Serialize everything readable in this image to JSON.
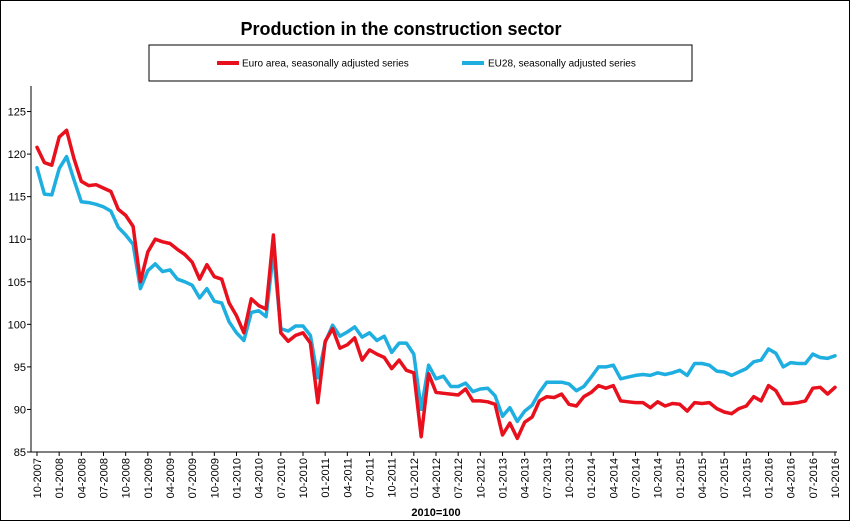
{
  "chart_data": {
    "type": "line",
    "title": "Production in the construction sector",
    "xlabel": "2010=100",
    "ylabel": "",
    "ylim": [
      85,
      128
    ],
    "yticks": [
      85,
      90,
      95,
      100,
      105,
      110,
      115,
      120,
      125
    ],
    "xtick_labels": [
      "10-2007",
      "01-2008",
      "04-2008",
      "07-2008",
      "10-2008",
      "01-2009",
      "04-2009",
      "07-2009",
      "10-2009",
      "01-2010",
      "04-2010",
      "07-2010",
      "10-2010",
      "01-2011",
      "04-2011",
      "07-2011",
      "10-2011",
      "01-2012",
      "04-2012",
      "07-2012",
      "10-2012",
      "01-2013",
      "04-2013",
      "07-2013",
      "10-2013",
      "01-2014",
      "04-2014",
      "07-2014",
      "10-2014",
      "01-2015",
      "04-2015",
      "07-2015",
      "10-2015",
      "01-2016",
      "04-2016",
      "07-2016",
      "10-2016"
    ],
    "legend_position": "top",
    "colors": {
      "euro": "#e8101c",
      "eu28": "#1eaee0"
    },
    "series": [
      {
        "name": "Euro area, seasonally adjusted series",
        "color": "#e8101c",
        "values": [
          120.8,
          119.0,
          118.7,
          122.0,
          122.8,
          119.5,
          116.8,
          116.3,
          116.4,
          116.0,
          115.6,
          113.5,
          112.8,
          111.5,
          105.0,
          108.5,
          110.0,
          109.7,
          109.5,
          108.8,
          108.2,
          107.3,
          105.3,
          107.0,
          105.6,
          105.3,
          102.5,
          101.0,
          99.0,
          103.0,
          102.2,
          101.8,
          110.5,
          99.0,
          98.0,
          98.7,
          99.0,
          97.8,
          90.8,
          98.0,
          99.5,
          97.2,
          97.6,
          98.4,
          95.8,
          97.0,
          96.5,
          96.1,
          94.8,
          95.8,
          94.6,
          94.3,
          86.8,
          94.2,
          92.0,
          91.9,
          91.8,
          91.7,
          92.4,
          91.0,
          91.0,
          90.9,
          90.6,
          87.0,
          88.4,
          86.6,
          88.5,
          89.1,
          91.0,
          91.5,
          91.4,
          91.8,
          90.6,
          90.4,
          91.5,
          92.0,
          92.8,
          92.5,
          92.8,
          91.0,
          90.9,
          90.8,
          90.8,
          90.2,
          90.9,
          90.4,
          90.7,
          90.6,
          89.8,
          90.8,
          90.7,
          90.8,
          90.1,
          89.7,
          89.5,
          90.1,
          90.4,
          91.5,
          91.0,
          92.8,
          92.2,
          90.7,
          90.7,
          90.8,
          91.0,
          92.5,
          92.6,
          91.8,
          92.6
        ]
      },
      {
        "name": "EU28, seasonally adjusted series",
        "color": "#1eaee0",
        "values": [
          118.4,
          115.3,
          115.2,
          118.3,
          119.7,
          117.0,
          114.4,
          114.3,
          114.1,
          113.8,
          113.3,
          111.4,
          110.5,
          109.4,
          104.2,
          106.3,
          107.1,
          106.2,
          106.4,
          105.3,
          105.0,
          104.6,
          103.1,
          104.2,
          102.7,
          102.5,
          100.3,
          99.0,
          98.1,
          101.4,
          101.6,
          100.9,
          108.5,
          99.5,
          99.2,
          99.8,
          99.8,
          98.7,
          93.7,
          97.9,
          99.9,
          98.6,
          99.1,
          99.7,
          98.5,
          99.0,
          98.1,
          98.6,
          96.7,
          97.8,
          97.8,
          96.5,
          90.0,
          95.2,
          93.6,
          93.9,
          92.7,
          92.7,
          93.1,
          92.1,
          92.4,
          92.5,
          91.6,
          89.2,
          90.2,
          88.6,
          89.8,
          90.5,
          92.0,
          93.2,
          93.2,
          93.2,
          93.0,
          92.2,
          92.7,
          93.8,
          95.0,
          95.0,
          95.2,
          93.6,
          93.8,
          94.0,
          94.1,
          94.0,
          94.3,
          94.1,
          94.3,
          94.6,
          94.0,
          95.4,
          95.4,
          95.2,
          94.5,
          94.4,
          94.0,
          94.4,
          94.8,
          95.6,
          95.8,
          97.1,
          96.6,
          95.0,
          95.5,
          95.4,
          95.4,
          96.5,
          96.1,
          96.0,
          96.3
        ]
      }
    ]
  }
}
